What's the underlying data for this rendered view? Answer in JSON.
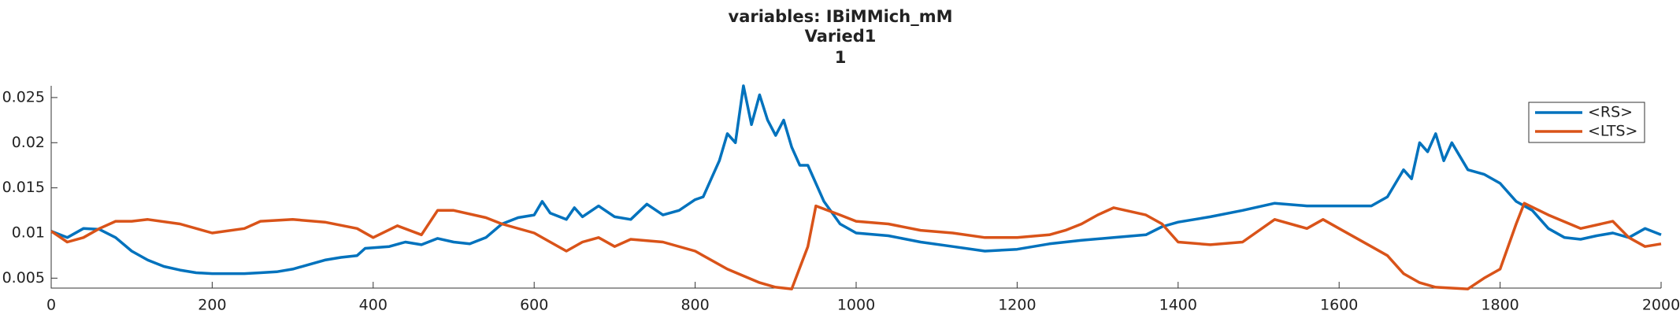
{
  "chart_data": {
    "type": "line",
    "title": "variables: IBiMMich_mM",
    "subtitle": "Varied1",
    "subtitle2": "1",
    "xlim": [
      0,
      2000
    ],
    "xticks": [
      0,
      200,
      400,
      600,
      800,
      1000,
      1200,
      1400,
      1600,
      1800,
      2000
    ],
    "ylim": [
      0.0039,
      0.0263
    ],
    "yticks": [
      0.005,
      0.01,
      0.015,
      0.02,
      0.025
    ],
    "legend": "upper right",
    "series": [
      {
        "name": "<RS>",
        "color": "#0072bd",
        "x": [
          0,
          20,
          40,
          60,
          80,
          100,
          120,
          140,
          160,
          180,
          200,
          220,
          240,
          260,
          280,
          300,
          320,
          340,
          360,
          380,
          390,
          420,
          440,
          460,
          480,
          500,
          520,
          540,
          560,
          580,
          600,
          610,
          620,
          640,
          650,
          660,
          680,
          700,
          720,
          740,
          760,
          780,
          800,
          810,
          820,
          830,
          840,
          850,
          860,
          870,
          880,
          890,
          900,
          910,
          920,
          930,
          940,
          960,
          980,
          1000,
          1040,
          1080,
          1120,
          1160,
          1200,
          1240,
          1280,
          1320,
          1360,
          1380,
          1400,
          1440,
          1480,
          1520,
          1560,
          1600,
          1640,
          1660,
          1680,
          1690,
          1700,
          1710,
          1720,
          1730,
          1740,
          1760,
          1780,
          1800,
          1820,
          1840,
          1860,
          1880,
          1900,
          1920,
          1940,
          1960,
          1980,
          2000
        ],
        "values": [
          0.0102,
          0.0095,
          0.0105,
          0.0104,
          0.0095,
          0.008,
          0.007,
          0.0063,
          0.0059,
          0.0056,
          0.0055,
          0.0055,
          0.0055,
          0.0056,
          0.0057,
          0.006,
          0.0065,
          0.007,
          0.0073,
          0.0075,
          0.0083,
          0.0085,
          0.009,
          0.0087,
          0.0094,
          0.009,
          0.0088,
          0.0095,
          0.011,
          0.0117,
          0.012,
          0.0135,
          0.0122,
          0.0115,
          0.0128,
          0.0118,
          0.013,
          0.0118,
          0.0115,
          0.0132,
          0.012,
          0.0125,
          0.0137,
          0.014,
          0.016,
          0.018,
          0.021,
          0.02,
          0.0263,
          0.022,
          0.0253,
          0.0225,
          0.0208,
          0.0225,
          0.0195,
          0.0175,
          0.0175,
          0.0135,
          0.011,
          0.01,
          0.0097,
          0.009,
          0.0085,
          0.008,
          0.0082,
          0.0088,
          0.0092,
          0.0095,
          0.0098,
          0.0107,
          0.0112,
          0.0118,
          0.0125,
          0.0133,
          0.013,
          0.013,
          0.013,
          0.014,
          0.017,
          0.016,
          0.02,
          0.019,
          0.021,
          0.018,
          0.02,
          0.017,
          0.0165,
          0.0155,
          0.0135,
          0.0125,
          0.0105,
          0.0095,
          0.0093,
          0.0097,
          0.01,
          0.0095,
          0.0105,
          0.0098
        ]
      },
      {
        "name": "<LTS>",
        "color": "#d95319",
        "x": [
          0,
          20,
          40,
          60,
          80,
          100,
          120,
          160,
          200,
          240,
          260,
          300,
          340,
          380,
          400,
          430,
          460,
          480,
          500,
          540,
          560,
          600,
          620,
          640,
          660,
          680,
          700,
          720,
          760,
          800,
          840,
          880,
          900,
          920,
          940,
          950,
          980,
          1000,
          1040,
          1080,
          1120,
          1160,
          1200,
          1240,
          1260,
          1280,
          1300,
          1320,
          1360,
          1380,
          1400,
          1440,
          1480,
          1520,
          1560,
          1580,
          1600,
          1640,
          1660,
          1680,
          1700,
          1720,
          1760,
          1780,
          1800,
          1820,
          1830,
          1860,
          1900,
          1940,
          1960,
          1980,
          2000
        ],
        "values": [
          0.0102,
          0.009,
          0.0095,
          0.0105,
          0.0113,
          0.0113,
          0.0115,
          0.011,
          0.01,
          0.0105,
          0.0113,
          0.0115,
          0.0112,
          0.0105,
          0.0095,
          0.0108,
          0.0098,
          0.0125,
          0.0125,
          0.0117,
          0.011,
          0.01,
          0.009,
          0.008,
          0.009,
          0.0095,
          0.0085,
          0.0093,
          0.009,
          0.008,
          0.006,
          0.0045,
          0.004,
          0.0038,
          0.0085,
          0.013,
          0.012,
          0.0113,
          0.011,
          0.0103,
          0.01,
          0.0095,
          0.0095,
          0.0098,
          0.0103,
          0.011,
          0.012,
          0.0128,
          0.012,
          0.011,
          0.009,
          0.0087,
          0.009,
          0.0115,
          0.0105,
          0.0115,
          0.0105,
          0.0085,
          0.0075,
          0.0055,
          0.0045,
          0.004,
          0.0038,
          0.005,
          0.006,
          0.011,
          0.0133,
          0.012,
          0.0105,
          0.0113,
          0.0095,
          0.0085,
          0.0088
        ]
      }
    ]
  }
}
